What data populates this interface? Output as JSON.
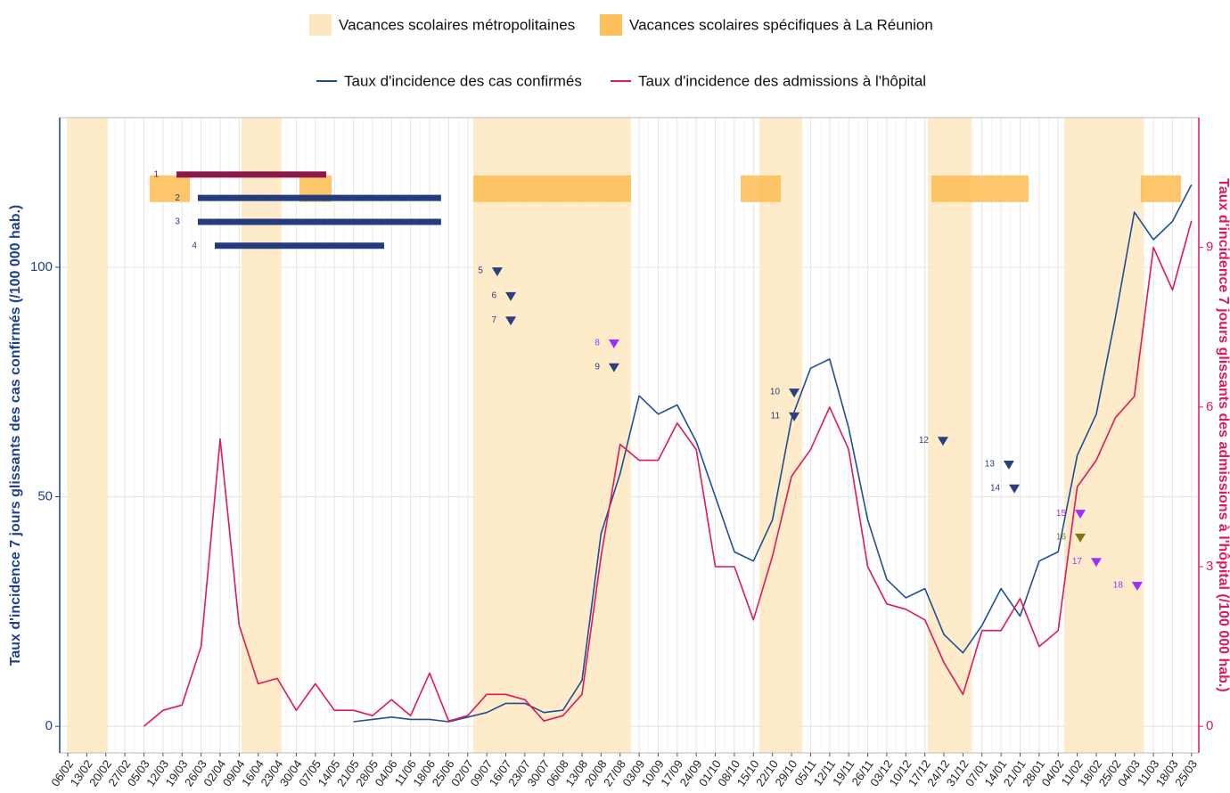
{
  "chart_data": {
    "type": "line",
    "categories": [
      "06/02",
      "13/02",
      "20/02",
      "27/02",
      "05/03",
      "12/03",
      "19/03",
      "26/03",
      "02/04",
      "09/04",
      "16/04",
      "23/04",
      "30/04",
      "07/05",
      "14/05",
      "21/05",
      "28/05",
      "04/06",
      "11/06",
      "18/06",
      "25/06",
      "02/07",
      "09/07",
      "16/07",
      "23/07",
      "30/07",
      "06/08",
      "13/08",
      "20/08",
      "27/08",
      "03/09",
      "10/09",
      "17/09",
      "24/09",
      "01/10",
      "08/10",
      "15/10",
      "22/10",
      "29/10",
      "05/11",
      "12/11",
      "19/11",
      "26/11",
      "03/12",
      "10/12",
      "17/12",
      "24/12",
      "31/12",
      "07/01",
      "14/01",
      "21/01",
      "28/01",
      "04/02",
      "11/02",
      "18/02",
      "25/02",
      "04/03",
      "11/03",
      "18/03",
      "25/03"
    ],
    "series": [
      {
        "name": "Taux d'incidence des cas confirmés",
        "color": "#1f4e99",
        "values": [
          null,
          null,
          null,
          null,
          null,
          null,
          null,
          null,
          null,
          null,
          null,
          null,
          null,
          null,
          null,
          1,
          1.5,
          2,
          1.5,
          1.5,
          1,
          2,
          3,
          5,
          5,
          3,
          3.5,
          10,
          42,
          55,
          72,
          68,
          70,
          62,
          50,
          38,
          36,
          45,
          67,
          78,
          80,
          65,
          45,
          32,
          28,
          30,
          20,
          16,
          22,
          30,
          24,
          36,
          38,
          59,
          68,
          89,
          112,
          106,
          110,
          118
        ]
      },
      {
        "name": "Taux d'incidence des admissions à l'hôpital",
        "color": "#e0195a",
        "axis": "y2",
        "values": [
          null,
          null,
          null,
          null,
          0,
          0.3,
          0.4,
          1.5,
          5.4,
          1.9,
          0.8,
          0.9,
          0.3,
          0.8,
          0.3,
          0.3,
          0.2,
          0.5,
          0.2,
          1.0,
          0.1,
          0.2,
          0.6,
          0.6,
          0.5,
          0.1,
          0.2,
          0.6,
          3.2,
          5.3,
          5.0,
          5.0,
          5.7,
          5.2,
          3.0,
          3.0,
          2.0,
          3.2,
          4.7,
          5.2,
          6.0,
          5.2,
          3.0,
          2.3,
          2.2,
          2.0,
          1.2,
          0.6,
          1.8,
          1.8,
          2.4,
          1.5,
          1.8,
          4.5,
          5.0,
          5.8,
          6.2,
          9.0,
          8.2,
          9.5
        ]
      }
    ],
    "ylim": [
      -5.8,
      132.6
    ],
    "yticks": [
      0,
      50,
      100
    ],
    "y2lim": [
      -0.5,
      11.44
    ],
    "y2ticks": [
      0,
      3,
      6,
      9
    ],
    "grid": true,
    "ylabel": "Taux d'incidence 7 jours glissants des cas confirmés (/100 000 hab.)",
    "y2label": "Taux d'incidence 7 jours glissants des admissions à l'hôpital (/100 000 hab.)",
    "bands": [
      {
        "name": "Vacances scolaires métropolitaines",
        "color": "#fde7c0",
        "spans": [
          {
            "x": [
              0,
              2.1
            ]
          },
          {
            "x": [
              9.12,
              11.23
            ]
          },
          {
            "x": [
              21.29,
              29.57
            ]
          },
          {
            "x": [
              36.31,
              38.56
            ]
          },
          {
            "x": [
              45.16,
              47.45
            ]
          },
          {
            "x": [
              52.32,
              56.48
            ]
          }
        ]
      },
      {
        "name": "Vacances scolaires spécifiques à La Réunion",
        "color": "#fdc05a",
        "spans": [
          {
            "x": [
              4.3,
              6.41
            ],
            "y": [
              114.2,
              120
            ]
          },
          {
            "x": [
              12.17,
              13.85
            ],
            "y": [
              114.2,
              120
            ]
          },
          {
            "x": [
              21.29,
              29.57
            ],
            "y": [
              114.2,
              120
            ]
          },
          {
            "x": [
              35.33,
              37.44
            ],
            "y": [
              114.2,
              120
            ]
          },
          {
            "x": [
              45.34,
              50.44
            ],
            "y": [
              114.2,
              120
            ]
          },
          {
            "x": [
              56.34,
              58.45
            ],
            "y": [
              114.2,
              120
            ]
          }
        ]
      }
    ],
    "measures": [
      {
        "label": "1",
        "color": "#8b1a4a",
        "x": [
          5.71,
          13.57
        ],
        "y": 120.2
      },
      {
        "label": "2",
        "color": "#253b80",
        "x": [
          6.83,
          19.6
        ],
        "y": 115.1
      },
      {
        "label": "3",
        "color": "#253b80",
        "x": [
          6.83,
          19.6
        ],
        "y": 109.9
      },
      {
        "label": "4",
        "color": "#253b80",
        "x": [
          7.72,
          16.61
        ],
        "y": 104.7
      }
    ],
    "markers": [
      {
        "label": "5",
        "color": "#2a3f7e",
        "x": 22.55,
        "y": 99
      },
      {
        "label": "6",
        "color": "#2a3f7e",
        "x": 23.26,
        "y": 93.6
      },
      {
        "label": "7",
        "color": "#2a3f7e",
        "x": 23.26,
        "y": 88.3
      },
      {
        "label": "8",
        "color": "#9b30ff",
        "x": 28.68,
        "y": 83.3
      },
      {
        "label": "9",
        "color": "#2a3f7e",
        "x": 28.68,
        "y": 78.1
      },
      {
        "label": "10",
        "color": "#2a3f7e",
        "x": 38.14,
        "y": 72.6
      },
      {
        "label": "11",
        "color": "#2a3f7e",
        "x": 38.14,
        "y": 67.4
      },
      {
        "label": "12",
        "color": "#2a3f7e",
        "x": 45.95,
        "y": 62.1
      },
      {
        "label": "13",
        "color": "#2a3f7e",
        "x": 49.41,
        "y": 56.9
      },
      {
        "label": "14",
        "color": "#2a3f7e",
        "x": 49.7,
        "y": 51.7
      },
      {
        "label": "15",
        "color": "#9b30ff",
        "x": 53.16,
        "y": 46.2
      },
      {
        "label": "16",
        "color": "#7a7a10",
        "x": 53.16,
        "y": 41.0
      },
      {
        "label": "17",
        "color": "#9b30ff",
        "x": 54.0,
        "y": 35.7
      },
      {
        "label": "18",
        "color": "#9b30ff",
        "x": 56.15,
        "y": 30.5
      }
    ]
  }
}
